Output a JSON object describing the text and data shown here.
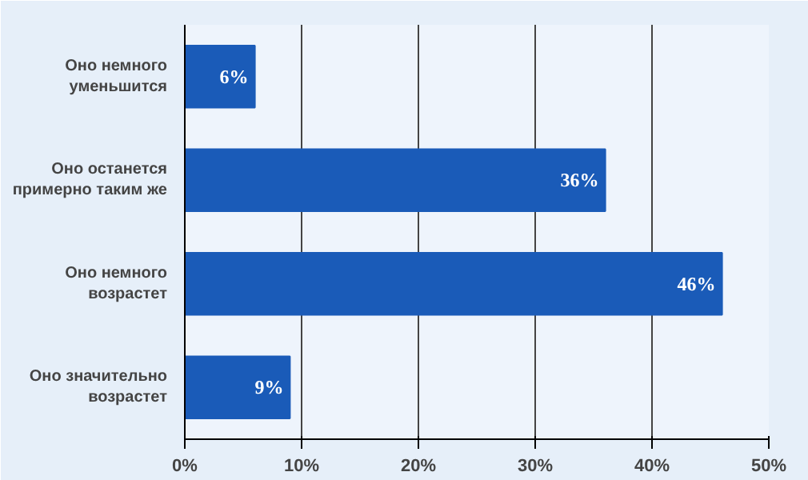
{
  "chart_data": {
    "type": "bar",
    "orientation": "horizontal",
    "categories": [
      "Оно немного уменьшится",
      "Оно останется примерно таким же",
      "Оно немного возрастет",
      "Оно значительно возрастет"
    ],
    "values": [
      6,
      36,
      46,
      9
    ],
    "color": "#1a5bb8",
    "value_labels": [
      "6%",
      "36%",
      "46%",
      "9%"
    ],
    "xlim": [
      0,
      50
    ],
    "xticks": [
      {
        "value": 0,
        "label": "0%"
      },
      {
        "value": 10,
        "label": "10%"
      },
      {
        "value": 20,
        "label": "20%"
      },
      {
        "value": 30,
        "label": "30%"
      },
      {
        "value": 40,
        "label": "40%"
      },
      {
        "value": 50,
        "label": "50%"
      }
    ],
    "grid": "x"
  }
}
